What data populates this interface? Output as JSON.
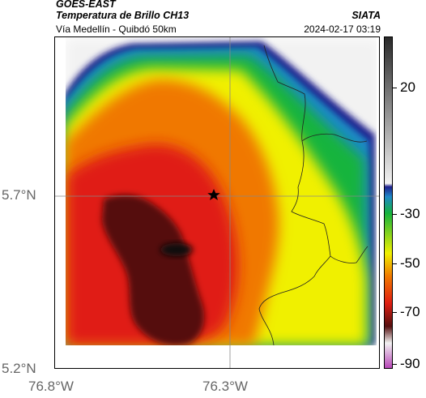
{
  "header": {
    "satellite": "GOES-EAST",
    "product": "Temperatura de Brillo CH13",
    "organization": "SIATA",
    "route": "Vía Medellín - Quibdó 50km",
    "datetime": "2024-02-17 03:19"
  },
  "axes": {
    "lat_labels": [
      "5.7°N",
      "5.2°N"
    ],
    "lon_labels": [
      "76.8°W",
      "76.3°W"
    ]
  },
  "marker": {
    "icon": "star-marker-icon"
  },
  "colorbar": {
    "ticks": [
      "20",
      "-30",
      "-50",
      "-70",
      "-90"
    ],
    "colors": {
      "gray_light": "#f2f2f2",
      "gray_dark": "#2a2a2a",
      "blue": "#1d1f8c",
      "cyan": "#1e88c8",
      "green": "#16b43c",
      "yellow": "#f0f000",
      "orange": "#f07800",
      "red": "#e01e12",
      "dark_red": "#551010",
      "magenta": "#b43cb4"
    }
  }
}
